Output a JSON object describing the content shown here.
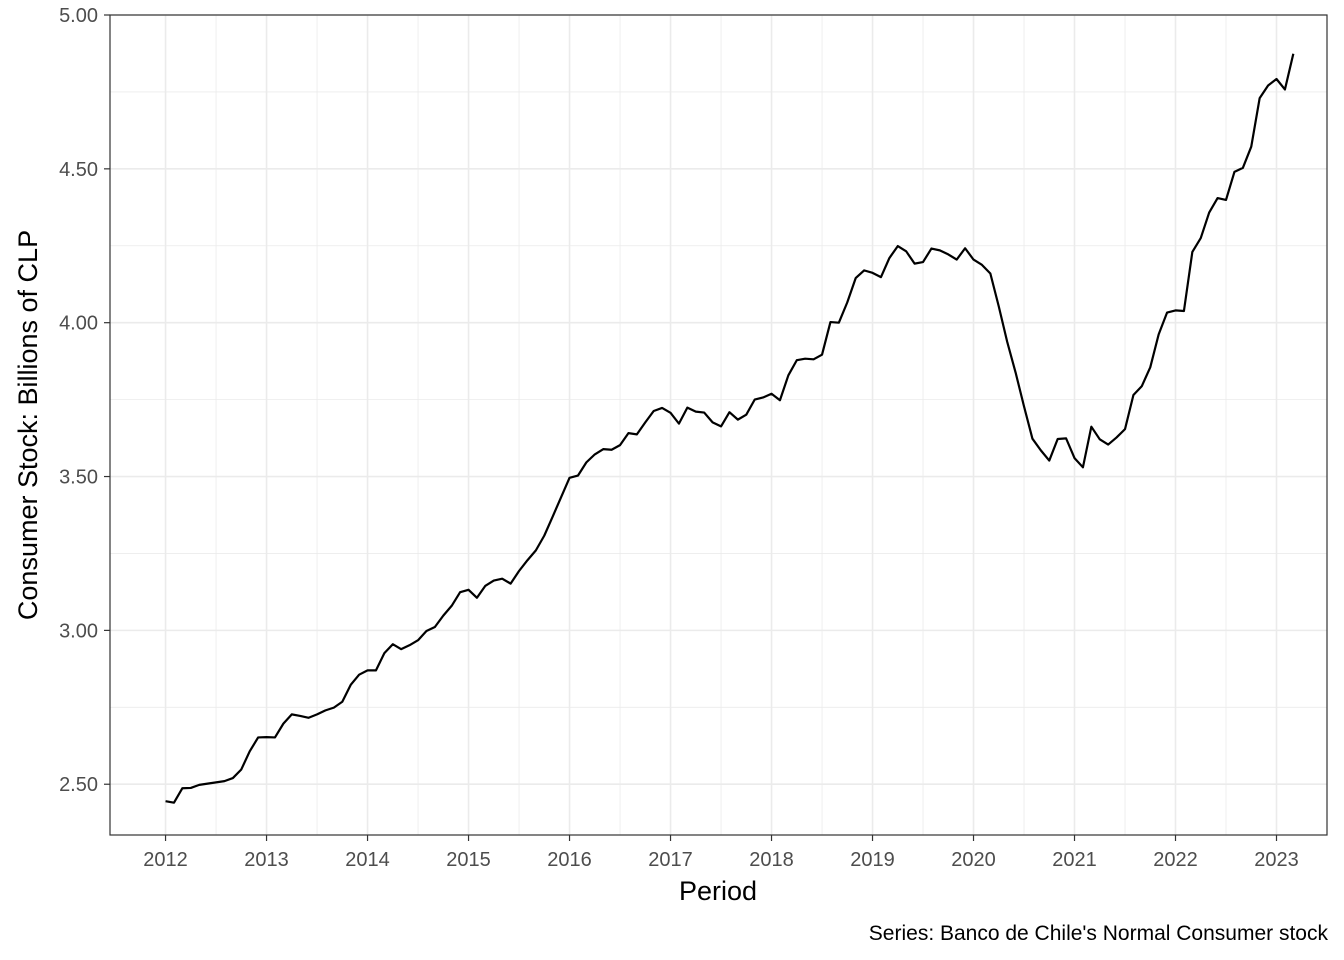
{
  "chart_data": {
    "type": "line",
    "title": "",
    "xlabel": "Period",
    "ylabel": "Consumer Stock: Billions of CLP",
    "caption": "Series: Banco de Chile's Normal Consumer stock",
    "xlim": [
      2011.45,
      2023.5
    ],
    "ylim": [
      2.335,
      5.0
    ],
    "x_ticks": [
      2012,
      2013,
      2014,
      2015,
      2016,
      2017,
      2018,
      2019,
      2020,
      2021,
      2022,
      2023
    ],
    "x_tick_labels": [
      "2012",
      "2013",
      "2014",
      "2015",
      "2016",
      "2017",
      "2018",
      "2019",
      "2020",
      "2021",
      "2022",
      "2023"
    ],
    "y_ticks": [
      2.5,
      3.0,
      3.5,
      4.0,
      4.5,
      5.0
    ],
    "y_tick_labels": [
      "2.50",
      "3.00",
      "3.50",
      "4.00",
      "4.50",
      "5.00"
    ],
    "grid": true,
    "colors": {
      "line": "#000000",
      "grid": "#ebebeb",
      "panel_border": "#333333",
      "background": "#ffffff"
    },
    "series": [
      {
        "x": [
          "2012-01",
          "2012-02",
          "2012-03",
          "2012-04",
          "2012-05",
          "2012-06",
          "2012-07",
          "2012-08",
          "2012-09",
          "2012-10",
          "2012-11",
          "2012-12",
          "2013-01",
          "2013-02",
          "2013-03",
          "2013-04",
          "2013-05",
          "2013-06",
          "2013-07",
          "2013-08",
          "2013-09",
          "2013-10",
          "2013-11",
          "2013-12",
          "2014-01",
          "2014-02",
          "2014-03",
          "2014-04",
          "2014-05",
          "2014-06",
          "2014-07",
          "2014-08",
          "2014-09",
          "2014-10",
          "2014-11",
          "2014-12",
          "2015-01",
          "2015-02",
          "2015-03",
          "2015-04",
          "2015-05",
          "2015-06",
          "2015-07",
          "2015-08",
          "2015-09",
          "2015-10",
          "2015-11",
          "2015-12",
          "2016-01",
          "2016-02",
          "2016-03",
          "2016-04",
          "2016-05",
          "2016-06",
          "2016-07",
          "2016-08",
          "2016-09",
          "2016-10",
          "2016-11",
          "2016-12",
          "2017-01",
          "2017-02",
          "2017-03",
          "2017-04",
          "2017-05",
          "2017-06",
          "2017-07",
          "2017-08",
          "2017-09",
          "2017-10",
          "2017-11",
          "2017-12",
          "2018-01",
          "2018-02",
          "2018-03",
          "2018-04",
          "2018-05",
          "2018-06",
          "2018-07",
          "2018-08",
          "2018-09",
          "2018-10",
          "2018-11",
          "2018-12",
          "2019-01",
          "2019-02",
          "2019-03",
          "2019-04",
          "2019-05",
          "2019-06",
          "2019-07",
          "2019-08",
          "2019-09",
          "2019-10",
          "2019-11",
          "2019-12",
          "2020-01",
          "2020-02",
          "2020-03",
          "2020-04",
          "2020-05",
          "2020-06",
          "2020-07",
          "2020-08",
          "2020-09",
          "2020-10",
          "2020-11",
          "2020-12",
          "2021-01",
          "2021-02",
          "2021-03",
          "2021-04",
          "2021-05",
          "2021-06",
          "2021-07",
          "2021-08",
          "2021-09",
          "2021-10",
          "2021-11",
          "2021-12",
          "2022-01",
          "2022-02",
          "2022-03",
          "2022-04",
          "2022-05",
          "2022-06",
          "2022-07",
          "2022-08",
          "2022-09",
          "2022-10",
          "2022-11",
          "2022-12",
          "2023-01",
          "2023-02",
          "2023-03"
        ],
        "values": [
          2.445,
          2.44,
          2.487,
          2.488,
          2.498,
          2.502,
          2.506,
          2.51,
          2.52,
          2.548,
          2.607,
          2.652,
          2.653,
          2.652,
          2.697,
          2.727,
          2.722,
          2.716,
          2.727,
          2.74,
          2.749,
          2.768,
          2.823,
          2.856,
          2.87,
          2.87,
          2.926,
          2.955,
          2.939,
          2.952,
          2.968,
          2.998,
          3.011,
          3.048,
          3.08,
          3.124,
          3.132,
          3.106,
          3.145,
          3.162,
          3.168,
          3.152,
          3.193,
          3.228,
          3.26,
          3.308,
          3.37,
          3.433,
          3.496,
          3.503,
          3.546,
          3.572,
          3.589,
          3.587,
          3.602,
          3.641,
          3.637,
          3.676,
          3.713,
          3.723,
          3.707,
          3.672,
          3.724,
          3.711,
          3.708,
          3.676,
          3.663,
          3.709,
          3.685,
          3.701,
          3.75,
          3.757,
          3.769,
          3.748,
          3.829,
          3.878,
          3.883,
          3.881,
          3.896,
          4.002,
          4.0,
          4.066,
          4.145,
          4.17,
          4.162,
          4.148,
          4.21,
          4.249,
          4.232,
          4.192,
          4.197,
          4.241,
          4.235,
          4.222,
          4.205,
          4.242,
          4.205,
          4.188,
          4.16,
          4.053,
          3.938,
          3.838,
          3.728,
          3.623,
          3.585,
          3.552,
          3.622,
          3.624,
          3.56,
          3.53,
          3.662,
          3.621,
          3.604,
          3.627,
          3.654,
          3.765,
          3.794,
          3.855,
          3.962,
          4.033,
          4.04,
          4.038,
          4.23,
          4.275,
          4.358,
          4.405,
          4.399,
          4.49,
          4.503,
          4.572,
          4.73,
          4.771,
          4.792,
          4.758,
          4.874
        ]
      }
    ]
  }
}
